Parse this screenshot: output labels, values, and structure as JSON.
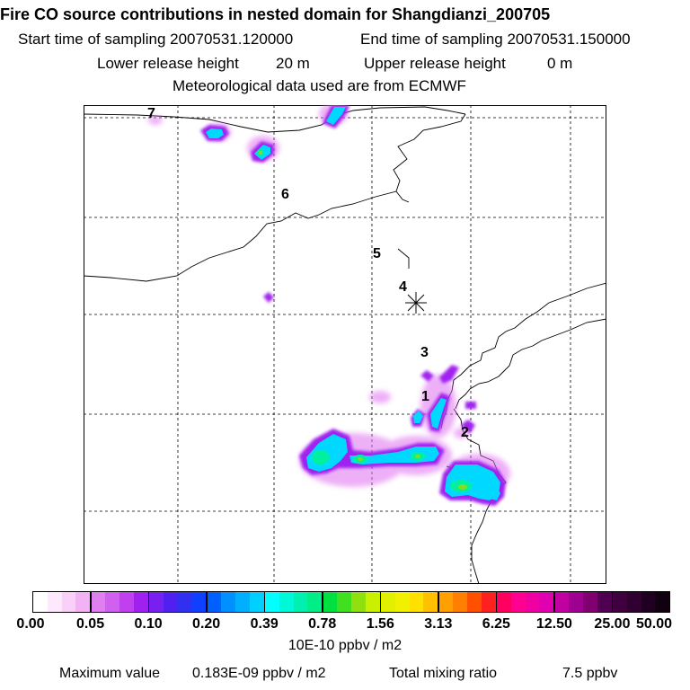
{
  "header": {
    "title": "Fire CO source contributions in nested domain for Shangdianzi_200705",
    "start_label": "Start time of sampling 20070531.120000",
    "end_label": "End time of sampling 20070531.150000",
    "lower_label": "Lower release height",
    "lower_value": "20 m",
    "upper_label": "Upper release height",
    "upper_value": "0 m",
    "met_label": "Meteorological data used are from ECMWF"
  },
  "map": {
    "trajectory_points": [
      "1",
      "2",
      "3",
      "4",
      "5",
      "6",
      "7"
    ],
    "receptor_marker": "asterisk"
  },
  "colorbar": {
    "ticks": [
      "0.00",
      "0.05",
      "0.10",
      "0.20",
      "0.39",
      "0.78",
      "1.56",
      "3.13",
      "6.25",
      "12.50",
      "25.00",
      "50.00"
    ],
    "colors": [
      [
        "#ffffff",
        "#fde8fd",
        "#f8d0f8",
        "#f3b2f3"
      ],
      [
        "#e080f0",
        "#d060f0",
        "#c040f0",
        "#a020f0"
      ],
      [
        "#7820f0",
        "#5020f0",
        "#3030f0",
        "#1040ff"
      ],
      [
        "#0060ff",
        "#0090ff",
        "#00b0ff",
        "#00d0ff"
      ],
      [
        "#00ffff",
        "#00f8d8",
        "#00f0b0",
        "#00ee88"
      ],
      [
        "#00e040",
        "#40e020",
        "#90e010",
        "#c8f000"
      ],
      [
        "#e0f000",
        "#f0f000",
        "#ffe000",
        "#ffc000"
      ],
      [
        "#ffa000",
        "#ff8000",
        "#ff5000",
        "#ff2020"
      ],
      [
        "#ff0060",
        "#ff0090",
        "#f000a0",
        "#e000b0"
      ],
      [
        "#c000a0",
        "#a00090",
        "#800070",
        "#500050"
      ],
      [
        "#400040",
        "#300030",
        "#200020",
        "#100010"
      ]
    ],
    "unit": "10E-10 ppbv / m2"
  },
  "footer": {
    "max_label": "Maximum value",
    "max_value": "0.183E-09 ppbv / m2",
    "total_label": "Total mixing ratio",
    "total_value": "7.5 ppbv"
  }
}
